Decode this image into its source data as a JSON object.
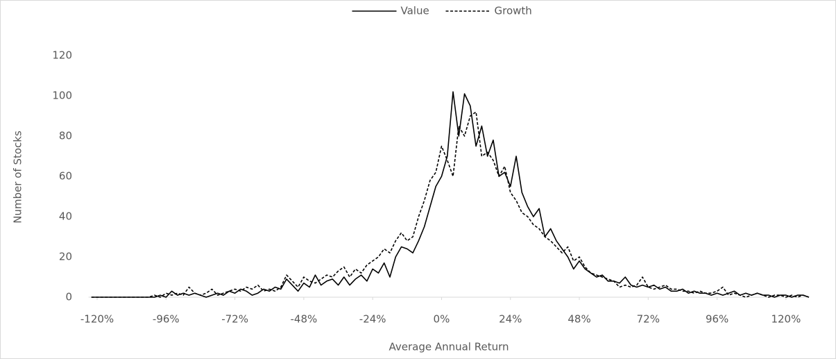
{
  "chart_data": {
    "type": "line",
    "x_label": "Average Annual Return",
    "y_label": "Number of Stocks",
    "x": [
      -122,
      -120,
      -118,
      -116,
      -114,
      -112,
      -110,
      -108,
      -106,
      -104,
      -102,
      -100,
      -98,
      -96,
      -94,
      -92,
      -90,
      -88,
      -86,
      -84,
      -82,
      -80,
      -78,
      -76,
      -74,
      -72,
      -70,
      -68,
      -66,
      -64,
      -62,
      -60,
      -58,
      -56,
      -54,
      -52,
      -50,
      -48,
      -46,
      -44,
      -42,
      -40,
      -38,
      -36,
      -34,
      -32,
      -30,
      -28,
      -26,
      -24,
      -22,
      -20,
      -18,
      -16,
      -14,
      -12,
      -10,
      -8,
      -6,
      -4,
      -2,
      0,
      2,
      4,
      6,
      8,
      10,
      12,
      14,
      16,
      18,
      20,
      22,
      24,
      26,
      28,
      30,
      32,
      34,
      36,
      38,
      40,
      42,
      44,
      46,
      48,
      50,
      52,
      54,
      56,
      58,
      60,
      62,
      64,
      66,
      68,
      70,
      72,
      74,
      76,
      78,
      80,
      82,
      84,
      86,
      88,
      90,
      92,
      94,
      96,
      98,
      100,
      102,
      104,
      106,
      108,
      110,
      112,
      114,
      116,
      118,
      120,
      122,
      124,
      126,
      128
    ],
    "series": [
      {
        "name": "Value",
        "color": "#000000",
        "dash": false,
        "values": [
          0,
          0,
          0,
          0,
          0,
          0,
          0,
          0,
          0,
          0,
          0,
          0,
          1,
          0,
          3,
          1,
          2,
          1,
          2,
          1,
          0,
          1,
          2,
          1,
          3,
          2,
          4,
          3,
          1,
          2,
          4,
          3,
          5,
          4,
          9,
          6,
          3,
          7,
          5,
          11,
          6,
          8,
          9,
          6,
          10,
          6,
          9,
          11,
          8,
          14,
          12,
          17,
          10,
          20,
          25,
          24,
          22,
          28,
          35,
          45,
          55,
          60,
          70,
          102,
          80,
          101,
          95,
          75,
          85,
          70,
          78,
          60,
          62,
          55,
          70,
          52,
          45,
          40,
          44,
          30,
          34,
          28,
          24,
          20,
          14,
          18,
          14,
          12,
          10,
          11,
          8,
          8,
          7,
          10,
          6,
          5,
          6,
          5,
          6,
          4,
          5,
          3,
          3,
          4,
          2,
          3,
          2,
          2,
          1,
          2,
          1,
          2,
          3,
          1,
          2,
          1,
          2,
          1,
          1,
          0,
          1,
          1,
          0,
          1,
          1,
          0
        ]
      },
      {
        "name": "Growth",
        "color": "#000000",
        "dash": true,
        "values": [
          0,
          0,
          0,
          0,
          0,
          0,
          0,
          0,
          0,
          0,
          0,
          1,
          0,
          2,
          1,
          2,
          1,
          5,
          2,
          1,
          2,
          4,
          1,
          2,
          3,
          4,
          3,
          5,
          4,
          6,
          3,
          4,
          3,
          5,
          11,
          8,
          5,
          10,
          8,
          7,
          9,
          11,
          10,
          13,
          15,
          10,
          14,
          12,
          16,
          18,
          20,
          24,
          22,
          28,
          32,
          28,
          30,
          40,
          48,
          58,
          62,
          75,
          68,
          60,
          85,
          80,
          90,
          92,
          70,
          72,
          68,
          60,
          65,
          52,
          48,
          42,
          40,
          36,
          34,
          30,
          28,
          25,
          22,
          25,
          18,
          20,
          15,
          12,
          11,
          10,
          9,
          8,
          5,
          6,
          5,
          6,
          10,
          5,
          4,
          5,
          6,
          4,
          4,
          3,
          3,
          2,
          3,
          2,
          2,
          3,
          5,
          1,
          2,
          1,
          0,
          1,
          2,
          1,
          0,
          1,
          1,
          0,
          1,
          0,
          1,
          0
        ]
      }
    ],
    "xlim": [
      -123,
      128
    ],
    "xticks": [
      {
        "value": -120,
        "label": "-120%"
      },
      {
        "value": -96,
        "label": "-96%"
      },
      {
        "value": -72,
        "label": "-72%"
      },
      {
        "value": -48,
        "label": "-48%"
      },
      {
        "value": -24,
        "label": "-24%"
      },
      {
        "value": 0,
        "label": "0%"
      },
      {
        "value": 24,
        "label": "24%"
      },
      {
        "value": 48,
        "label": "48%"
      },
      {
        "value": 72,
        "label": "72%"
      },
      {
        "value": 96,
        "label": "96%"
      },
      {
        "value": 120,
        "label": "120%"
      }
    ],
    "ylim": [
      0,
      120
    ],
    "yticks": [
      0,
      20,
      40,
      60,
      80,
      100,
      120
    ],
    "grid": false,
    "legend": "top"
  }
}
